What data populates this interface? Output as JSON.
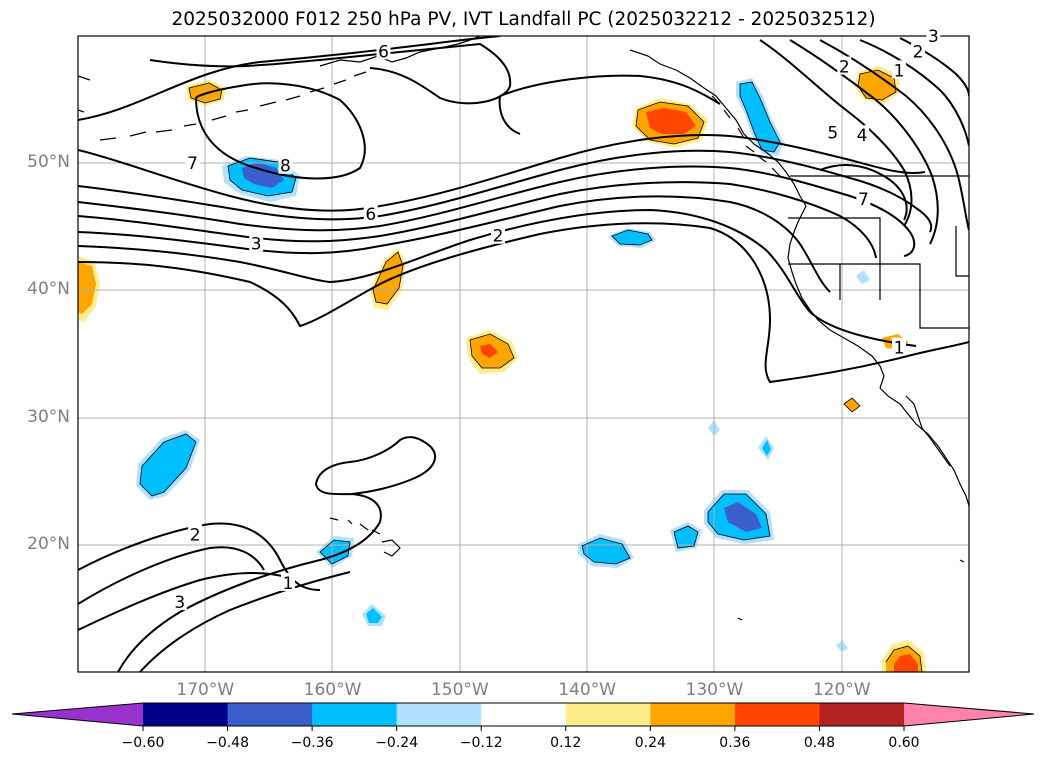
{
  "title": "2025032000 F012 250 hPa PV, IVT Landfall PC (2025032212 - 2025032512)",
  "map": {
    "projection": "PlateCarree",
    "lon_range": [
      -180,
      -110
    ],
    "lat_range": [
      10,
      60
    ],
    "gridlines": true,
    "lat_ticks": [
      {
        "value": 50,
        "label": "50°N"
      },
      {
        "value": 40,
        "label": "40°N"
      },
      {
        "value": 30,
        "label": "30°N"
      },
      {
        "value": 20,
        "label": "20°N"
      }
    ],
    "lon_ticks": [
      {
        "value": -170,
        "label": "170°W"
      },
      {
        "value": -160,
        "label": "160°W"
      },
      {
        "value": -150,
        "label": "150°W"
      },
      {
        "value": -140,
        "label": "140°W"
      },
      {
        "value": -130,
        "label": "130°W"
      },
      {
        "value": -120,
        "label": "120°W"
      }
    ],
    "contour_labels": [
      {
        "text": "6",
        "lon": -156,
        "lat": 58.8
      },
      {
        "text": "7",
        "lon": -171,
        "lat": 50.0
      },
      {
        "text": "8",
        "lon": -163.7,
        "lat": 49.8
      },
      {
        "text": "6",
        "lon": -157,
        "lat": 46.0
      },
      {
        "text": "3",
        "lon": -166,
        "lat": 43.7
      },
      {
        "text": "2",
        "lon": -147,
        "lat": 44.3
      },
      {
        "text": "2",
        "lon": -170.8,
        "lat": 20.8
      },
      {
        "text": "3",
        "lon": -172,
        "lat": 15.5
      },
      {
        "text": "1",
        "lon": -163.5,
        "lat": 17.0
      },
      {
        "text": "2",
        "lon": -114,
        "lat": 58.8
      },
      {
        "text": "1",
        "lon": -115.5,
        "lat": 57.3
      },
      {
        "text": "2",
        "lon": -119.8,
        "lat": 57.6
      },
      {
        "text": "3",
        "lon": -112.8,
        "lat": 60.0
      },
      {
        "text": "5",
        "lon": -120.7,
        "lat": 52.4
      },
      {
        "text": "4",
        "lon": -118.4,
        "lat": 52.2
      },
      {
        "text": "7",
        "lon": -118.3,
        "lat": 47.2
      },
      {
        "text": "1",
        "lon": -115.5,
        "lat": 35.5
      }
    ]
  },
  "colorbar": {
    "tick_labels": [
      "−0.60",
      "−0.48",
      "−0.36",
      "−0.24",
      "−0.12",
      "0.12",
      "0.24",
      "0.36",
      "0.48",
      "0.60"
    ],
    "colors": [
      "#9932cc",
      "#00008b",
      "#3a5fcd",
      "#00bfff",
      "#b0e2ff",
      "#ffffff",
      "#ffec8b",
      "#ffa500",
      "#ff4500",
      "#b22222",
      "#ff82ab"
    ]
  }
}
